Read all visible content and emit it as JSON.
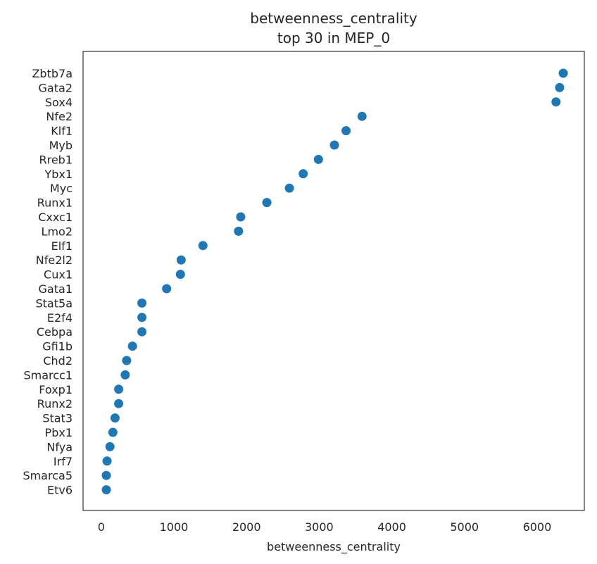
{
  "chart_data": {
    "type": "scatter",
    "title": "betweenness_centrality",
    "subtitle": "top 30 in MEP_0",
    "xlabel": "betweenness_centrality",
    "ylabel": "",
    "xlim": [
      -250,
      6650
    ],
    "xticks": [
      0,
      1000,
      2000,
      3000,
      4000,
      5000,
      6000
    ],
    "grid": false,
    "legend": "none",
    "marker_color": "#1f77b4",
    "categories": [
      "Zbtb7a",
      "Gata2",
      "Sox4",
      "Nfe2",
      "Klf1",
      "Myb",
      "Rreb1",
      "Ybx1",
      "Myc",
      "Runx1",
      "Cxxc1",
      "Lmo2",
      "Elf1",
      "Nfe2l2",
      "Cux1",
      "Gata1",
      "Stat5a",
      "E2f4",
      "Cebpa",
      "Gfi1b",
      "Chd2",
      "Smarcc1",
      "Foxp1",
      "Runx2",
      "Stat3",
      "Pbx1",
      "Nfya",
      "Irf7",
      "Smarca5",
      "Etv6"
    ],
    "values": [
      6360,
      6310,
      6260,
      3590,
      3370,
      3210,
      2990,
      2780,
      2590,
      2280,
      1920,
      1890,
      1400,
      1100,
      1090,
      900,
      560,
      560,
      560,
      430,
      350,
      330,
      240,
      240,
      190,
      160,
      120,
      80,
      70,
      70
    ]
  }
}
